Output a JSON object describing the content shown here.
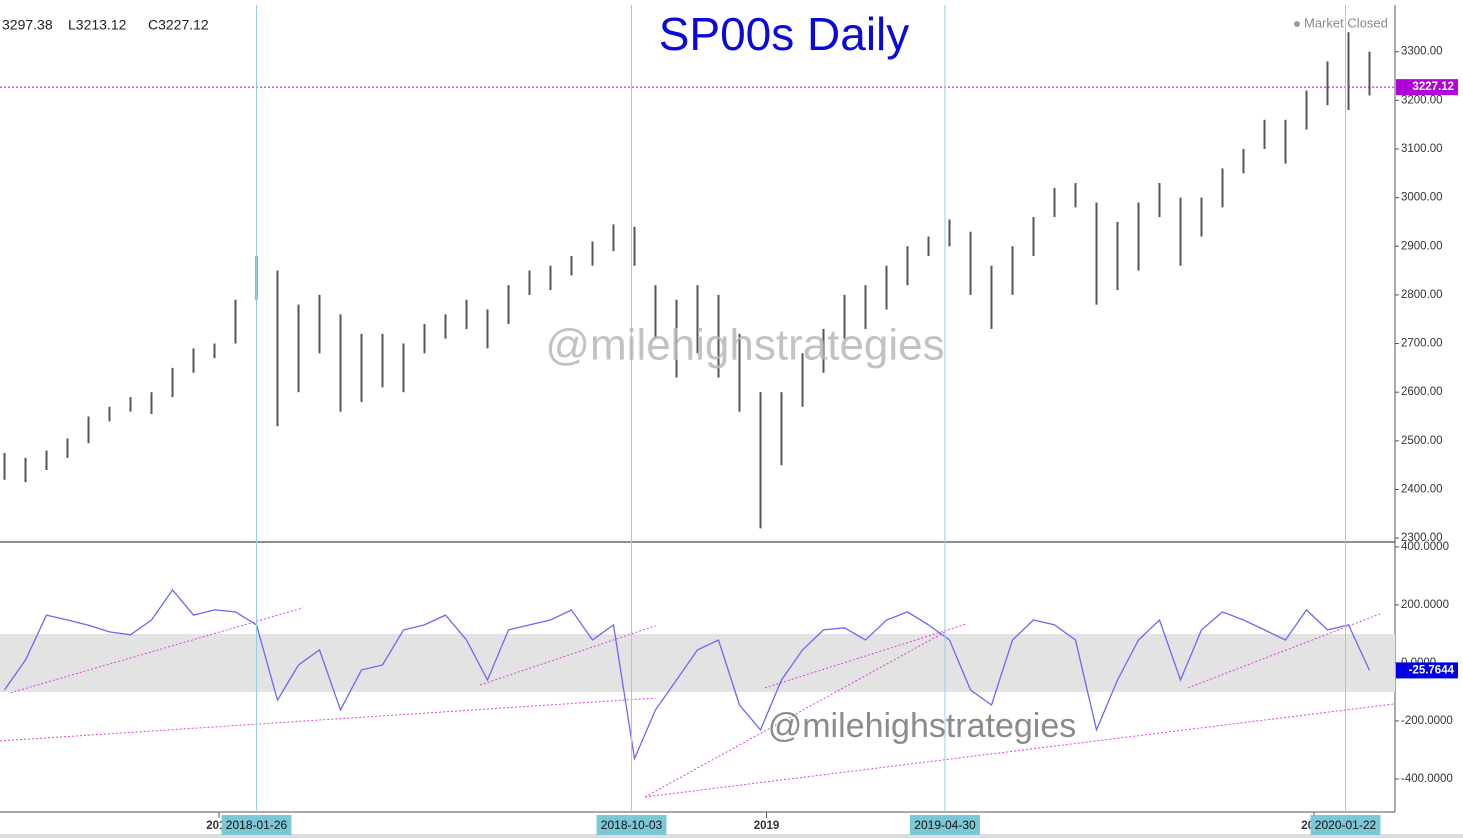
{
  "chart_data": [
    {
      "type": "ohlc",
      "title": "SP00s Daily",
      "status": "Market Closed",
      "watermark": "@milehighstrategies",
      "header": [
        "3297.38",
        "L3213.12",
        "C3227.12"
      ],
      "x": [
        "2017-08-11",
        "2017-08-25",
        "2017-09-08",
        "2017-09-22",
        "2017-10-06",
        "2017-10-20",
        "2017-11-03",
        "2017-11-17",
        "2017-12-01",
        "2017-12-15",
        "2017-12-29",
        "2018-01-12",
        "2018-01-26",
        "2018-02-09",
        "2018-02-23",
        "2018-03-09",
        "2018-03-23",
        "2018-04-06",
        "2018-04-20",
        "2018-05-04",
        "2018-05-18",
        "2018-06-01",
        "2018-06-15",
        "2018-06-29",
        "2018-07-13",
        "2018-07-27",
        "2018-08-10",
        "2018-08-24",
        "2018-09-07",
        "2018-09-21",
        "2018-10-05",
        "2018-10-19",
        "2018-11-02",
        "2018-11-16",
        "2018-11-30",
        "2018-12-14",
        "2018-12-28",
        "2019-01-11",
        "2019-01-25",
        "2019-02-08",
        "2019-02-22",
        "2019-03-08",
        "2019-03-22",
        "2019-04-05",
        "2019-04-19",
        "2019-05-03",
        "2019-05-17",
        "2019-05-31",
        "2019-06-14",
        "2019-06-28",
        "2019-07-12",
        "2019-07-26",
        "2019-08-09",
        "2019-08-23",
        "2019-09-06",
        "2019-09-20",
        "2019-10-04",
        "2019-10-18",
        "2019-11-01",
        "2019-11-15",
        "2019-11-29",
        "2019-12-13",
        "2019-12-27",
        "2020-01-10",
        "2020-01-24",
        "2020-02-07"
      ],
      "high": [
        2475,
        2465,
        2480,
        2505,
        2550,
        2570,
        2590,
        2600,
        2650,
        2690,
        2700,
        2790,
        2880,
        2850,
        2780,
        2800,
        2760,
        2720,
        2720,
        2700,
        2740,
        2760,
        2790,
        2770,
        2820,
        2850,
        2860,
        2880,
        2910,
        2945,
        2940,
        2820,
        2790,
        2820,
        2800,
        2720,
        2600,
        2600,
        2680,
        2730,
        2800,
        2820,
        2860,
        2900,
        2920,
        2955,
        2930,
        2860,
        2900,
        2960,
        3020,
        3030,
        2990,
        2950,
        2990,
        3030,
        3000,
        3000,
        3060,
        3100,
        3160,
        3160,
        3220,
        3280,
        3340,
        3300
      ],
      "low": [
        2420,
        2415,
        2440,
        2465,
        2495,
        2540,
        2560,
        2555,
        2590,
        2640,
        2670,
        2700,
        2790,
        2530,
        2600,
        2680,
        2560,
        2580,
        2610,
        2600,
        2680,
        2710,
        2730,
        2690,
        2740,
        2800,
        2810,
        2840,
        2860,
        2890,
        2860,
        2710,
        2630,
        2680,
        2630,
        2560,
        2320,
        2450,
        2570,
        2640,
        2710,
        2730,
        2770,
        2820,
        2880,
        2900,
        2800,
        2730,
        2800,
        2880,
        2960,
        2980,
        2780,
        2810,
        2850,
        2960,
        2860,
        2920,
        2980,
        3050,
        3100,
        3070,
        3140,
        3190,
        3180,
        3210
      ],
      "color": "#555555",
      "xlim": [
        "2017-08-08",
        "2020-02-24"
      ],
      "xticks": [
        {
          "value": "2018-01-01",
          "label": "2018"
        },
        {
          "value": "2019-01-01",
          "label": "2019"
        },
        {
          "value": "2020-01-01",
          "label": "2020"
        }
      ],
      "markers": [
        "2018-01-26",
        "2018-10-03",
        "2019-04-30",
        "2020-01-22"
      ],
      "ylim": [
        2292,
        3396
      ],
      "yticks": [
        {
          "value": 2300,
          "label": "2300.00"
        },
        {
          "value": 2400,
          "label": "2400.00"
        },
        {
          "value": 2500,
          "label": "2500.00"
        },
        {
          "value": 2600,
          "label": "2600.00"
        },
        {
          "value": 2700,
          "label": "2700.00"
        },
        {
          "value": 2800,
          "label": "2800.00"
        },
        {
          "value": 2900,
          "label": "2900.00"
        },
        {
          "value": 3000,
          "label": "3000.00"
        },
        {
          "value": 3100,
          "label": "3100.00"
        },
        {
          "value": 3200,
          "label": "3200.00"
        },
        {
          "value": 3300,
          "label": "3300.00"
        }
      ],
      "last_value": 3227.12,
      "last_color": "#b000d8"
    },
    {
      "type": "line",
      "x": [
        "2017-08-11",
        "2017-08-25",
        "2017-09-08",
        "2017-09-22",
        "2017-10-06",
        "2017-10-20",
        "2017-11-03",
        "2017-11-17",
        "2017-12-01",
        "2017-12-15",
        "2017-12-29",
        "2018-01-12",
        "2018-01-26",
        "2018-02-09",
        "2018-02-23",
        "2018-03-09",
        "2018-03-23",
        "2018-04-06",
        "2018-04-20",
        "2018-05-04",
        "2018-05-18",
        "2018-06-01",
        "2018-06-15",
        "2018-06-29",
        "2018-07-13",
        "2018-07-27",
        "2018-08-10",
        "2018-08-24",
        "2018-09-07",
        "2018-09-21",
        "2018-10-05",
        "2018-10-19",
        "2018-11-02",
        "2018-11-16",
        "2018-11-30",
        "2018-12-14",
        "2018-12-28",
        "2019-01-11",
        "2019-01-25",
        "2019-02-08",
        "2019-02-22",
        "2019-03-08",
        "2019-03-22",
        "2019-04-05",
        "2019-04-19",
        "2019-05-03",
        "2019-05-17",
        "2019-05-31",
        "2019-06-14",
        "2019-06-28",
        "2019-07-12",
        "2019-07-26",
        "2019-08-09",
        "2019-08-23",
        "2019-09-06",
        "2019-09-20",
        "2019-10-04",
        "2019-10-18",
        "2019-11-01",
        "2019-11-15",
        "2019-11-29",
        "2019-12-13",
        "2019-12-27",
        "2020-01-10",
        "2020-01-24",
        "2020-02-07"
      ],
      "values": [
        -93,
        10,
        165,
        148,
        130,
        107,
        97,
        148,
        252,
        165,
        183,
        176,
        131,
        -128,
        -7,
        45,
        -162,
        -24,
        -7,
        114,
        131,
        165,
        79,
        -59,
        114,
        131,
        148,
        183,
        79,
        131,
        -330,
        -162,
        -59,
        45,
        79,
        -145,
        -231,
        -59,
        45,
        114,
        121,
        79,
        148,
        176,
        131,
        79,
        -93,
        -145,
        79,
        148,
        131,
        79,
        -231,
        -59,
        79,
        148,
        -59,
        114,
        176,
        148,
        114,
        79,
        183,
        114,
        131,
        -25.7644
      ],
      "color": "#6a6af0",
      "xlim": [
        "2017-08-08",
        "2020-02-24"
      ],
      "ylim": [
        -514,
        417
      ],
      "yticks": [
        {
          "value": 400,
          "label": "400.0000"
        },
        {
          "value": 200,
          "label": "200.0000"
        },
        {
          "value": 0,
          "label": "0.0000"
        },
        {
          "value": -200,
          "label": "-200.0000"
        },
        {
          "value": -400,
          "label": "-400.0000"
        }
      ],
      "band": [
        -100,
        100
      ],
      "trendlines": [
        {
          "x": [
            "2017-08-15",
            "2018-02-26"
          ],
          "y": [
            -103,
            190
          ]
        },
        {
          "x": [
            "2017-08-08",
            "2018-10-19"
          ],
          "y": [
            -269,
            -121
          ]
        },
        {
          "x": [
            "2018-06-24",
            "2018-10-19"
          ],
          "y": [
            -76,
            128
          ]
        },
        {
          "x": [
            "2018-10-12",
            "2019-04-30"
          ],
          "y": [
            -462,
            107
          ]
        },
        {
          "x": [
            "2018-10-12",
            "2020-02-24"
          ],
          "y": [
            -462,
            -141
          ]
        },
        {
          "x": [
            "2018-12-31",
            "2019-05-14"
          ],
          "y": [
            -86,
            134
          ]
        },
        {
          "x": [
            "2019-10-09",
            "2020-02-14"
          ],
          "y": [
            -86,
            169
          ]
        }
      ],
      "last_value": -25.7644,
      "last_color": "#0000e6"
    }
  ]
}
